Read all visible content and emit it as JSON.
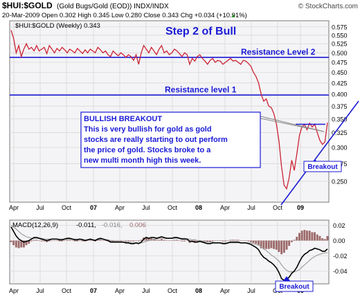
{
  "header": {
    "symbol": "$HUI:$GOLD",
    "description": "(Gold Bugs/Gold (EOD))  INDX/INDX",
    "watermark": "© StockCharts.com",
    "date": "20-Mar-2009",
    "quote": "Open 0.302  High 0.345  Low 0.280  Close 0.343  Chg +0.034 (+10.91%)",
    "quote_arrow": "▲"
  },
  "colors": {
    "price": "#cc2233",
    "annotation": "#1a1ad6",
    "macd": "#000000",
    "signal": "#a0a0a0",
    "histogram": "#9c6a6a",
    "grid": "#d8d8d8",
    "background": "#f4f4f6"
  },
  "chart_data": [
    {
      "type": "line",
      "legend": "$HUI:$GOLD (Weekly) 0.343",
      "x_ticks": [
        "Apr",
        "Jul",
        "Oct",
        "07",
        "Apr",
        "Jul",
        "Oct",
        "08",
        "Apr",
        "Jul",
        "Oct",
        "09"
      ],
      "y_ticks": [
        "0.575",
        "0.550",
        "0.525",
        "0.500",
        "0.475",
        "0.450",
        "0.425",
        "0.400",
        "0.375",
        "0.350",
        "0.325",
        "0.300",
        "0.275",
        "0.250"
      ],
      "y_axis_scale": "log",
      "ylim": [
        0.225,
        0.59
      ],
      "series": [
        {
          "name": "$HUI:$GOLD",
          "values": [
            0.565,
            0.54,
            0.5,
            0.52,
            0.49,
            0.51,
            0.525,
            0.51,
            0.515,
            0.505,
            0.52,
            0.505,
            0.51,
            0.515,
            0.498,
            0.52,
            0.51,
            0.5,
            0.512,
            0.505,
            0.515,
            0.508,
            0.5,
            0.51,
            0.505,
            0.5,
            0.512,
            0.505,
            0.498,
            0.508,
            0.5,
            0.51,
            0.505,
            0.5,
            0.515,
            0.508,
            0.5,
            0.505,
            0.495,
            0.49,
            0.505,
            0.498,
            0.492,
            0.5,
            0.495,
            0.488,
            0.495,
            0.49,
            0.48,
            0.495,
            0.47,
            0.5,
            0.52,
            0.51,
            0.5,
            0.515,
            0.505,
            0.495,
            0.51,
            0.52,
            0.5,
            0.505,
            0.495,
            0.5,
            0.51,
            0.505,
            0.498,
            0.49,
            0.5,
            0.495,
            0.47,
            0.485,
            0.478,
            0.49,
            0.495,
            0.485,
            0.478,
            0.47,
            0.48,
            0.485,
            0.475,
            0.48,
            0.478,
            0.47,
            0.475,
            0.48,
            0.485,
            0.478,
            0.48,
            0.475,
            0.47,
            0.48,
            0.478,
            0.472,
            0.465,
            0.45,
            0.44,
            0.425,
            0.4,
            0.385,
            0.39,
            0.375,
            0.372,
            0.36,
            0.34,
            0.31,
            0.27,
            0.245,
            0.24,
            0.255,
            0.28,
            0.265,
            0.29,
            0.32,
            0.335,
            0.34,
            0.33,
            0.342,
            0.335,
            0.34,
            0.325,
            0.312,
            0.305,
            0.309,
            0.343
          ]
        }
      ],
      "annotations": {
        "title": "Step 2 of Bull",
        "resistance_2": {
          "label": "Resistance Level 2",
          "value": 0.488
        },
        "resistance_1": {
          "label": "Resistance level 1",
          "value": 0.398
        },
        "breakout_level": 0.34,
        "callout_heading": "BULLISH BREAKOUT",
        "callout_lines": [
          "This is very bullish for gold as gold",
          "stocks are really starting to out perform",
          "the price of gold. Stocks broke to a",
          "new multi month high this week."
        ],
        "breakout_label": "Breakout"
      }
    },
    {
      "type": "line",
      "legend_label": "MACD(12,26,9)",
      "legend_macd": "-0.011,",
      "legend_signal": "-0.016,",
      "legend_histogram": "0.006",
      "x_ticks": [
        "Apr",
        "Jul",
        "Oct",
        "07",
        "Apr",
        "Jul",
        "Oct",
        "08",
        "Apr",
        "Jul",
        "Oct",
        "09"
      ],
      "y_ticks": [
        "0.02",
        "0.00",
        "-0.02",
        "-0.04"
      ],
      "ylim": [
        -0.055,
        0.025
      ],
      "series": [
        {
          "name": "MACD",
          "values": [
            0.018,
            0.012,
            0.006,
            0.002,
            0.0,
            -0.002,
            -0.001,
            0.0,
            0.002,
            0.004,
            0.004,
            0.003,
            0.002,
            0.001,
            0.0,
            0.001,
            0.002,
            0.002,
            0.002,
            0.001,
            0.001,
            0.002,
            0.003,
            0.003,
            0.002,
            0.001,
            0.001,
            0.002,
            0.001,
            0.0,
            0.001,
            0.002,
            0.001,
            0.0,
            0.002,
            0.003,
            0.002,
            0.001,
            0.0,
            -0.002,
            -0.002,
            -0.002,
            -0.002,
            -0.002,
            -0.002,
            -0.003,
            -0.003,
            -0.004,
            -0.004,
            -0.003,
            -0.004,
            -0.002,
            0.002,
            0.004,
            0.003,
            0.004,
            0.004,
            0.003,
            0.004,
            0.005,
            0.004,
            0.003,
            0.003,
            0.003,
            0.004,
            0.004,
            0.003,
            0.002,
            0.002,
            0.002,
            -0.001,
            -0.001,
            -0.002,
            -0.002,
            -0.001,
            -0.002,
            -0.003,
            -0.004,
            -0.004,
            -0.003,
            -0.003,
            -0.003,
            -0.003,
            -0.004,
            -0.004,
            -0.003,
            -0.002,
            -0.002,
            -0.002,
            -0.002,
            -0.003,
            -0.003,
            -0.003,
            -0.004,
            -0.005,
            -0.007,
            -0.009,
            -0.012,
            -0.018,
            -0.022,
            -0.024,
            -0.027,
            -0.029,
            -0.032,
            -0.036,
            -0.042,
            -0.05,
            -0.052,
            -0.051,
            -0.048,
            -0.043,
            -0.04,
            -0.035,
            -0.028,
            -0.022,
            -0.018,
            -0.016,
            -0.013,
            -0.012,
            -0.01,
            -0.011,
            -0.012,
            -0.014,
            -0.014,
            -0.011
          ]
        },
        {
          "name": "Signal",
          "values": [
            0.02,
            0.018,
            0.015,
            0.012,
            0.009,
            0.007,
            0.005,
            0.004,
            0.003,
            0.003,
            0.003,
            0.003,
            0.003,
            0.002,
            0.002,
            0.002,
            0.002,
            0.002,
            0.002,
            0.002,
            0.002,
            0.002,
            0.002,
            0.002,
            0.002,
            0.002,
            0.002,
            0.002,
            0.002,
            0.001,
            0.001,
            0.001,
            0.001,
            0.001,
            0.001,
            0.002,
            0.002,
            0.001,
            0.001,
            0.0,
            0.0,
            -0.001,
            -0.001,
            -0.001,
            -0.002,
            -0.002,
            -0.002,
            -0.003,
            -0.003,
            -0.003,
            -0.003,
            -0.003,
            -0.002,
            -0.001,
            0.0,
            0.001,
            0.002,
            0.002,
            0.003,
            0.003,
            0.003,
            0.003,
            0.003,
            0.003,
            0.003,
            0.003,
            0.003,
            0.003,
            0.003,
            0.002,
            0.002,
            0.001,
            0.001,
            0.0,
            0.0,
            -0.001,
            -0.001,
            -0.002,
            -0.002,
            -0.002,
            -0.003,
            -0.003,
            -0.003,
            -0.003,
            -0.003,
            -0.003,
            -0.003,
            -0.003,
            -0.003,
            -0.003,
            -0.003,
            -0.003,
            -0.003,
            -0.003,
            -0.003,
            -0.004,
            -0.005,
            -0.006,
            -0.008,
            -0.011,
            -0.013,
            -0.016,
            -0.019,
            -0.021,
            -0.024,
            -0.027,
            -0.032,
            -0.036,
            -0.039,
            -0.041,
            -0.041,
            -0.041,
            -0.04,
            -0.038,
            -0.035,
            -0.032,
            -0.029,
            -0.026,
            -0.023,
            -0.021,
            -0.019,
            -0.018,
            -0.017,
            -0.016,
            -0.016
          ]
        },
        {
          "name": "Histogram",
          "values": [
            -0.002,
            -0.006,
            -0.009,
            -0.01,
            -0.009,
            -0.009,
            -0.006,
            -0.004,
            -0.001,
            0.001,
            0.001,
            0.0,
            -0.001,
            -0.001,
            -0.002,
            -0.001,
            0.0,
            0.0,
            0.0,
            -0.001,
            -0.001,
            0.0,
            0.001,
            0.001,
            0.0,
            -0.001,
            -0.001,
            0.0,
            -0.001,
            -0.001,
            0.0,
            0.001,
            0.0,
            -0.001,
            0.001,
            0.001,
            0.0,
            0.0,
            -0.001,
            -0.002,
            -0.002,
            -0.001,
            -0.001,
            -0.001,
            0.0,
            -0.001,
            -0.001,
            -0.001,
            -0.001,
            0.0,
            -0.001,
            0.001,
            0.004,
            0.005,
            0.003,
            0.003,
            0.002,
            0.001,
            0.001,
            0.002,
            0.001,
            0.0,
            0.0,
            0.0,
            0.001,
            0.001,
            0.0,
            -0.001,
            -0.001,
            0.0,
            -0.003,
            -0.002,
            -0.003,
            -0.002,
            -0.001,
            -0.001,
            -0.002,
            -0.002,
            -0.002,
            -0.001,
            0.0,
            0.0,
            0.0,
            -0.001,
            -0.001,
            0.0,
            0.001,
            0.001,
            0.001,
            0.001,
            0.0,
            0.0,
            0.0,
            -0.001,
            -0.002,
            -0.003,
            -0.004,
            -0.006,
            -0.01,
            -0.011,
            -0.011,
            -0.011,
            -0.01,
            -0.011,
            -0.012,
            -0.015,
            -0.018,
            -0.016,
            -0.012,
            -0.007,
            -0.002,
            0.001,
            0.005,
            0.01,
            0.013,
            0.014,
            0.013,
            0.013,
            0.011,
            0.011,
            0.008,
            0.006,
            0.003,
            0.002,
            0.006
          ]
        }
      ],
      "annotations": {
        "breakout_label": "Breakout"
      }
    }
  ]
}
